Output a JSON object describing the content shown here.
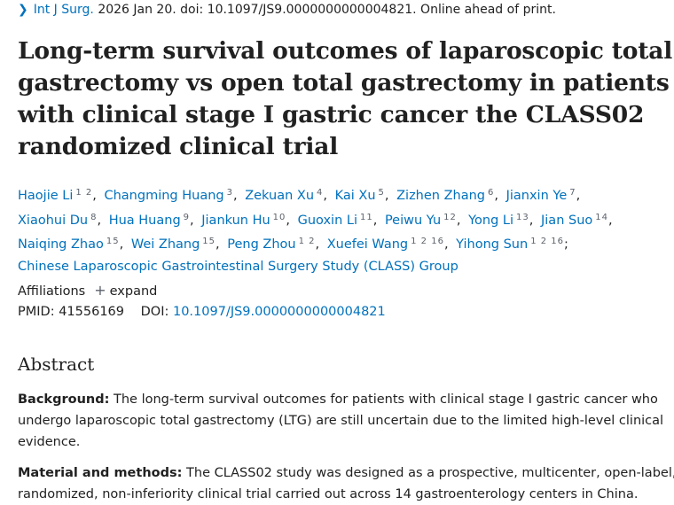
{
  "citation": {
    "journal": "Int J Surg.",
    "rest": " 2026 Jan 20. doi: 10.1097/JS9.0000000000004821. Online ahead of print."
  },
  "title_lines": [
    "Long-term survival outcomes of laparoscopic total",
    "gastrectomy vs open total gastrectomy in patients",
    "with clinical stage I gastric cancer the CLASS02",
    "randomized clinical trial"
  ],
  "authors": [
    {
      "name": "Haojie Li",
      "aff": "1 2"
    },
    {
      "name": "Changming Huang",
      "aff": "3"
    },
    {
      "name": "Zekuan Xu",
      "aff": "4"
    },
    {
      "name": "Kai Xu",
      "aff": "5"
    },
    {
      "name": "Zizhen Zhang",
      "aff": "6"
    },
    {
      "name": "Jianxin Ye",
      "aff": "7"
    },
    {
      "name": "Xiaohui Du",
      "aff": "8"
    },
    {
      "name": "Hua Huang",
      "aff": "9"
    },
    {
      "name": "Jiankun Hu",
      "aff": "10"
    },
    {
      "name": "Guoxin Li",
      "aff": "11"
    },
    {
      "name": "Peiwu Yu",
      "aff": "12"
    },
    {
      "name": "Yong Li",
      "aff": "13"
    },
    {
      "name": "Jian Suo",
      "aff": "14"
    },
    {
      "name": "Naiqing Zhao",
      "aff": "15"
    },
    {
      "name": "Wei Zhang",
      "aff": "15"
    },
    {
      "name": "Peng Zhou",
      "aff": "1 2"
    },
    {
      "name": "Xuefei Wang",
      "aff": "1 2 16"
    },
    {
      "name": "Yihong Sun",
      "aff": "1 2 16"
    }
  ],
  "separators": {
    "comma": ",",
    "semicolon": ";"
  },
  "group": "Chinese Laparoscopic Gastrointestinal Surgery Study (CLASS) Group",
  "affiliations": {
    "label": "Affiliations",
    "expand": "expand"
  },
  "ids": {
    "pmid_label": "PMID:",
    "pmid": "41556169",
    "doi_label": "DOI:",
    "doi": "10.1097/JS9.0000000000004821"
  },
  "abstract": {
    "heading": "Abstract",
    "background_label": "Background:",
    "background_lines": [
      " The long-term survival outcomes for patients with clinical stage I gastric cancer who",
      "undergo laparoscopic total gastrectomy (LTG) are still uncertain due to the limited high-level clinical",
      "evidence."
    ],
    "methods_label": "Material and methods:",
    "methods_lines": [
      " The CLASS02 study was designed as a prospective, multicenter, open-label,",
      "randomized, non-inferiority clinical trial carried out across 14 gastroenterology centers in China."
    ]
  },
  "colors": {
    "link": "#0071bc",
    "text": "#212121",
    "muted": "#5b616b"
  }
}
